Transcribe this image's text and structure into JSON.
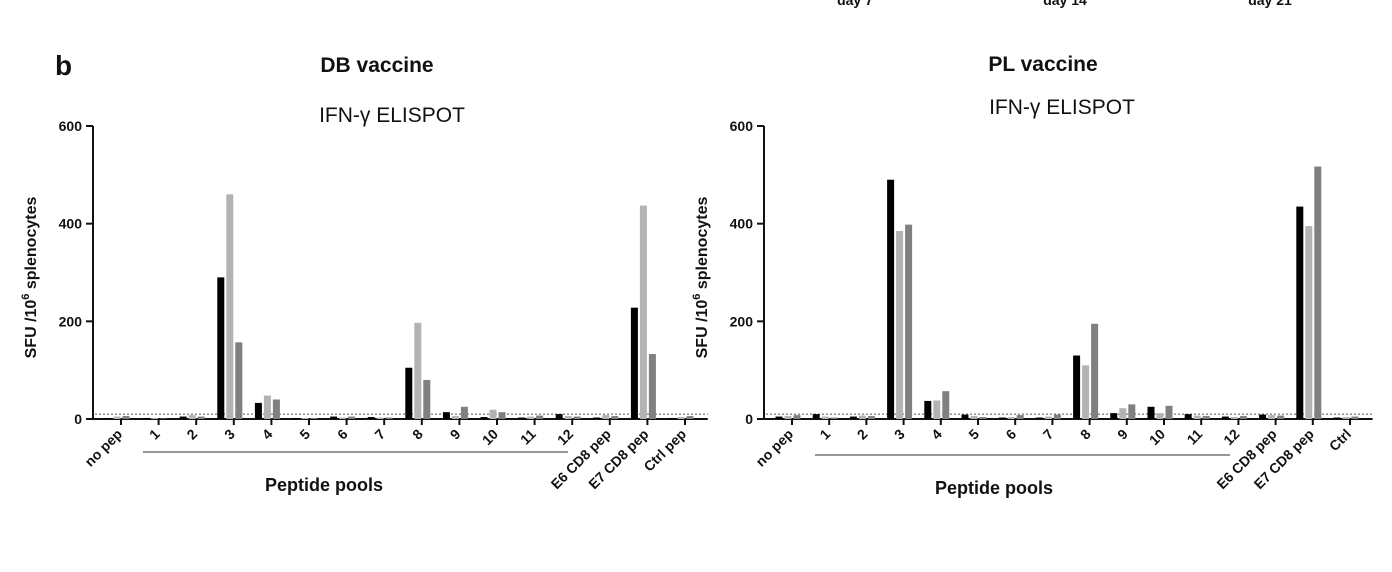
{
  "panel_letter": "b",
  "top_fragments": [
    "day 7",
    "day 14",
    "day 21"
  ],
  "chart_data": [
    {
      "type": "bar",
      "title": "DB vaccine",
      "subtitle": "IFN-γ ELISPOT",
      "ylabel": "SFU /10^6 splenocytes",
      "xlabel": "Peptide pools",
      "ylim": [
        0,
        600
      ],
      "yticks": [
        0,
        200,
        400,
        600
      ],
      "threshold": 10,
      "pool_range": [
        "1",
        "12"
      ],
      "categories": [
        "no pep",
        "1",
        "2",
        "3",
        "4",
        "5",
        "6",
        "7",
        "8",
        "9",
        "10",
        "11",
        "12",
        "E6 CD8 pep",
        "E7 CD8 pep",
        "Ctrl pep"
      ],
      "series": [
        {
          "color": "#000000",
          "values": [
            2,
            2,
            5,
            290,
            33,
            2,
            5,
            4,
            105,
            14,
            4,
            3,
            10,
            3,
            228,
            2
          ]
        },
        {
          "color": "#b3b3b3",
          "values": [
            5,
            2,
            8,
            460,
            48,
            2,
            3,
            3,
            197,
            6,
            19,
            5,
            6,
            8,
            437,
            4
          ]
        },
        {
          "color": "#808080",
          "values": [
            6,
            1,
            5,
            157,
            40,
            2,
            5,
            3,
            80,
            25,
            14,
            7,
            5,
            6,
            133,
            6
          ]
        }
      ],
      "grid": false
    },
    {
      "type": "bar",
      "title": "PL vaccine",
      "subtitle": "IFN-γ ELISPOT",
      "ylabel": "SFU /10^6 splenocytes",
      "xlabel": "Peptide pools",
      "ylim": [
        0,
        600
      ],
      "yticks": [
        0,
        200,
        400,
        600
      ],
      "threshold": 10,
      "pool_range": [
        "1",
        "12"
      ],
      "categories": [
        "no pep",
        "1",
        "2",
        "3",
        "4",
        "5",
        "6",
        "7",
        "8",
        "9",
        "10",
        "11",
        "12",
        "E6 CD8 pep",
        "E7 CD8 pep",
        "Ctrl"
      ],
      "series": [
        {
          "color": "#000000",
          "values": [
            5,
            10,
            5,
            490,
            37,
            9,
            3,
            3,
            130,
            12,
            25,
            10,
            5,
            9,
            435,
            3
          ]
        },
        {
          "color": "#b3b3b3",
          "values": [
            6,
            5,
            7,
            385,
            38,
            6,
            4,
            5,
            110,
            22,
            12,
            7,
            4,
            8,
            395,
            4
          ]
        },
        {
          "color": "#808080",
          "values": [
            8,
            3,
            6,
            398,
            57,
            4,
            8,
            9,
            195,
            30,
            27,
            6,
            6,
            7,
            517,
            5
          ]
        }
      ],
      "grid": false
    }
  ]
}
